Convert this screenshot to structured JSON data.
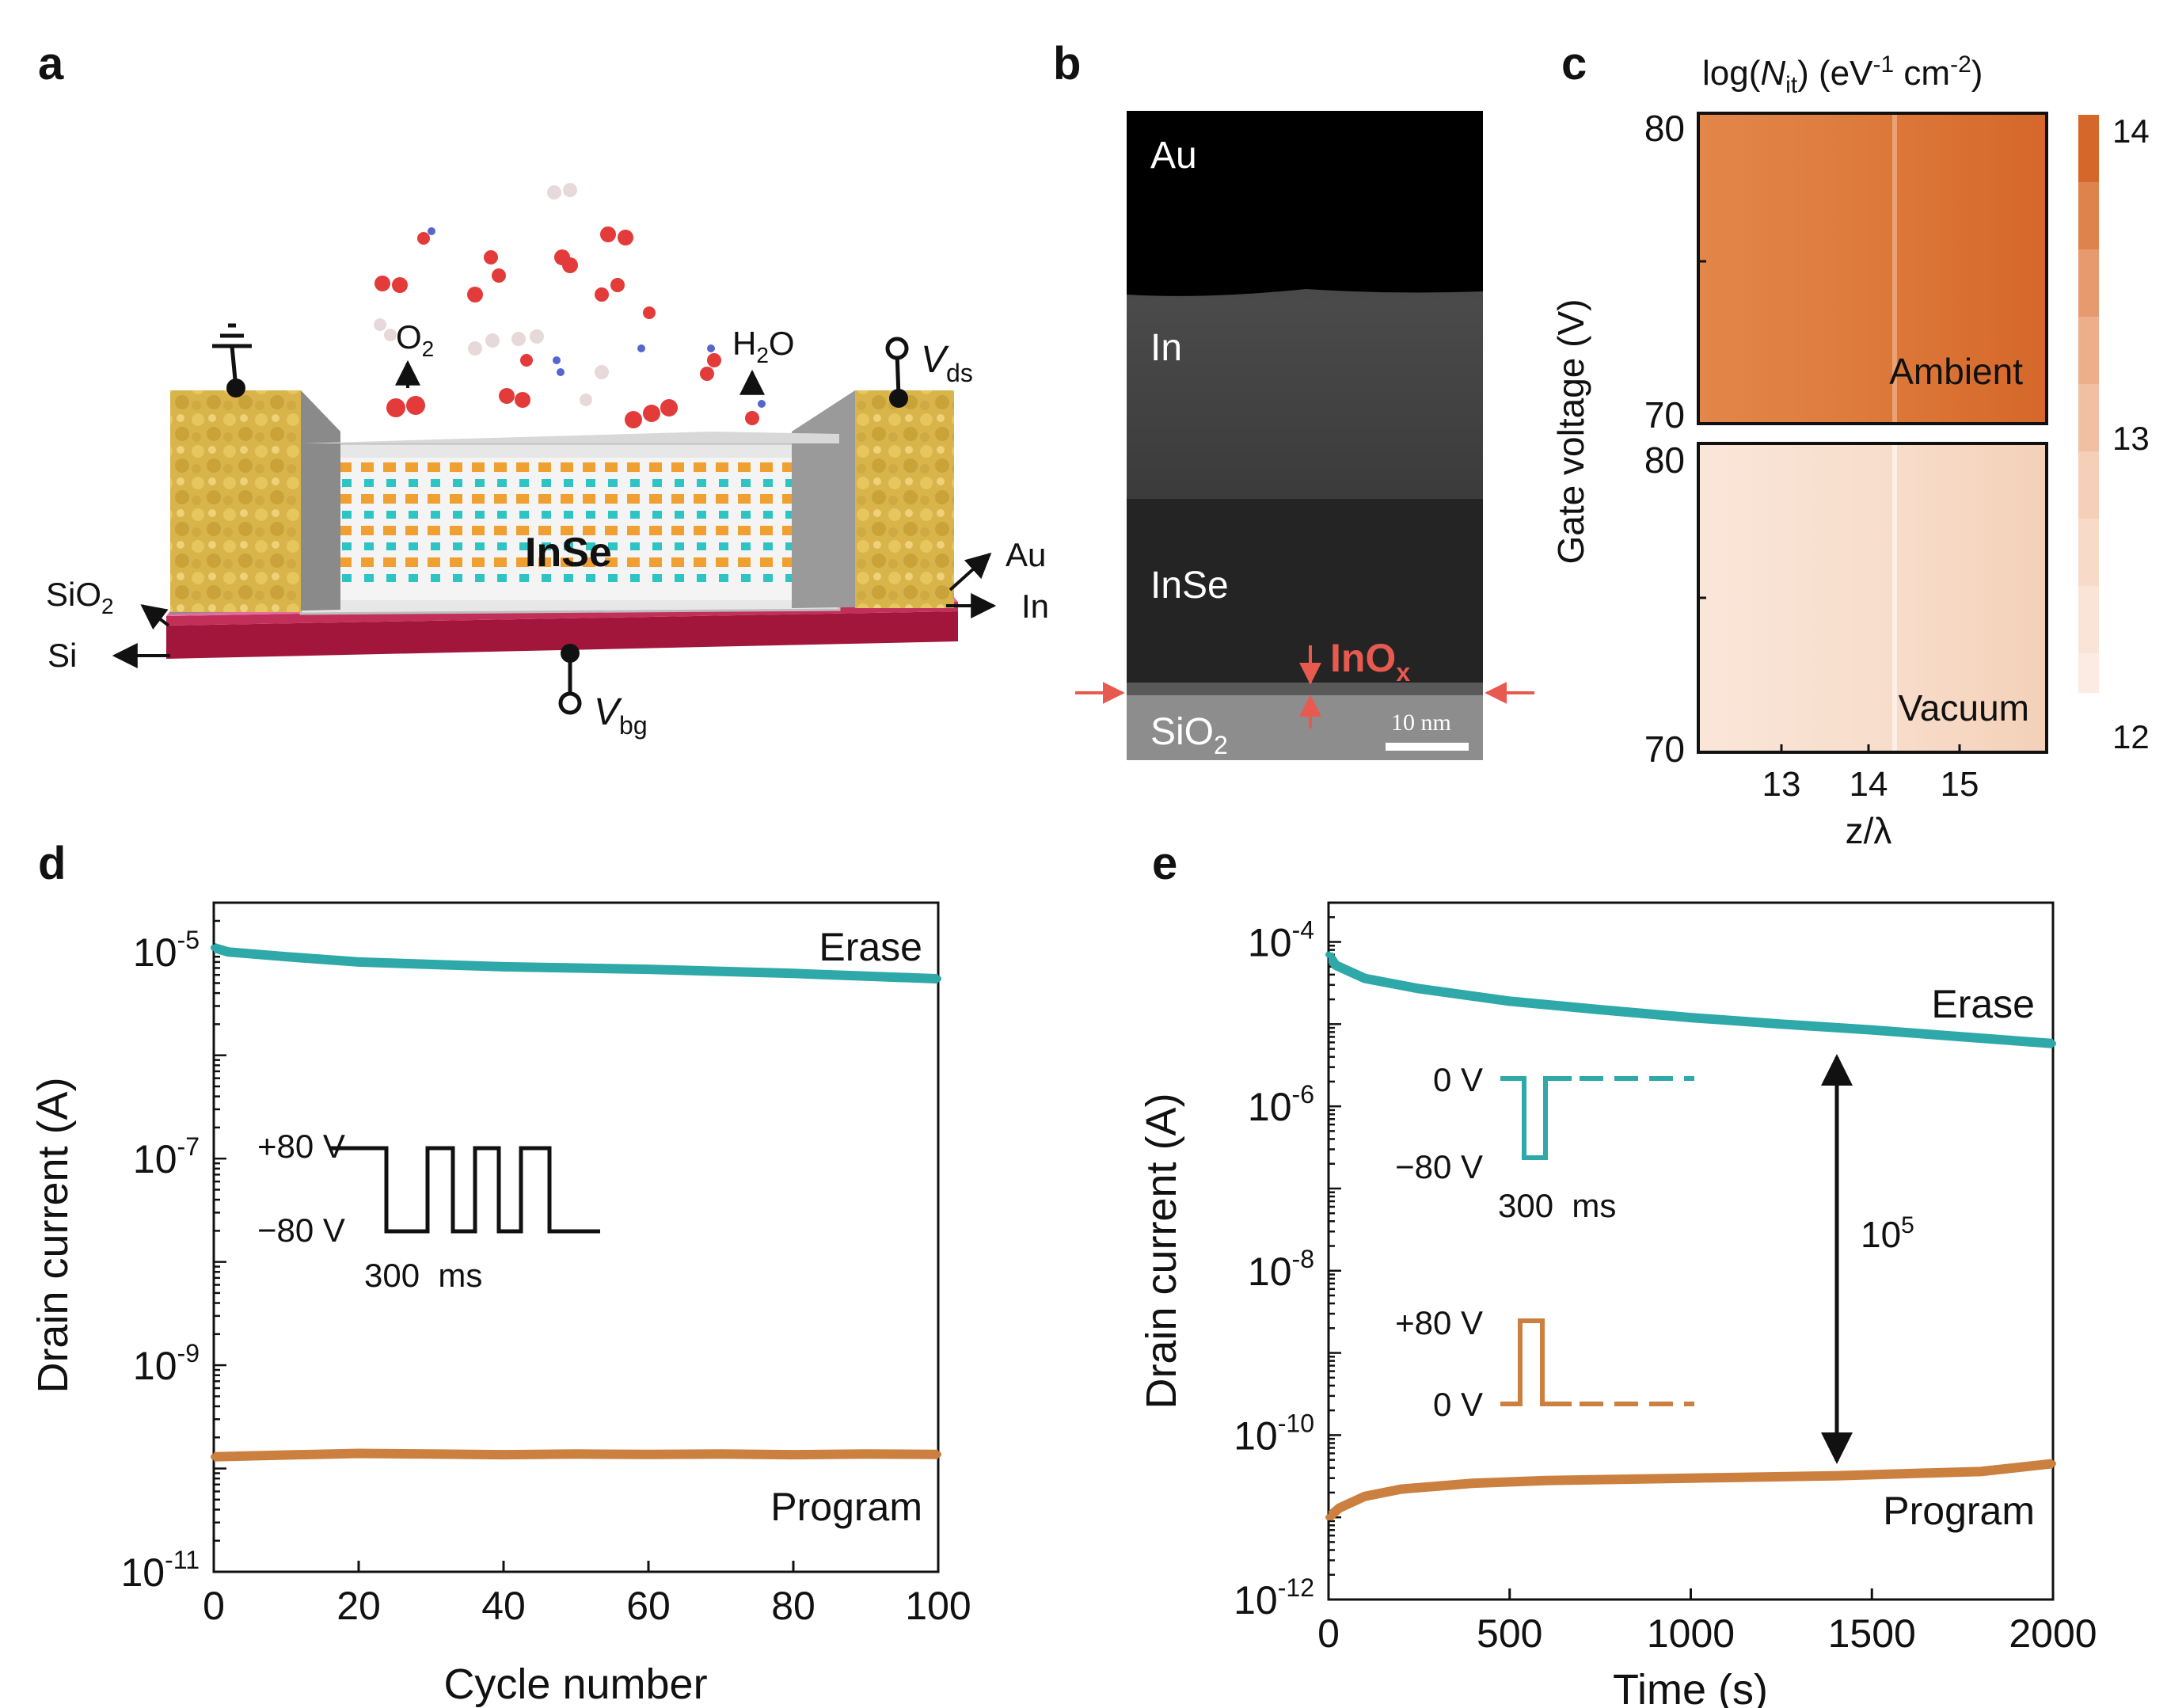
{
  "panel_labels": [
    "a",
    "b",
    "c",
    "d",
    "e"
  ],
  "colors": {
    "erase": "#2ea8a8",
    "program": "#cc8040",
    "ambient": "#d86f2c",
    "vacuum": "#f7dac8",
    "marker": "#e85a4f"
  },
  "panel_a": {
    "channel_label": "InSe",
    "molecules": [
      "O",
      "2",
      "H",
      "2",
      "O"
    ],
    "left_labels": [
      {
        "text": "SiO",
        "sub": "2"
      },
      {
        "text": "Si",
        "sub": ""
      }
    ],
    "right_labels": [
      "Au",
      "In"
    ],
    "terminals": [
      {
        "text": "V",
        "sub": "ds"
      },
      {
        "text": "V",
        "sub": "bg"
      }
    ]
  },
  "panel_b": {
    "layers": [
      "Au",
      "In",
      "InSe"
    ],
    "oxide": {
      "text": "InO",
      "sub": "x"
    },
    "substrate": {
      "text": "SiO",
      "sub": "2"
    },
    "scale_bar": "10 nm"
  },
  "panel_c": {
    "title": {
      "pre": "log(",
      "sym": "N",
      "sub": "it",
      "post": ") (eV",
      "sup1": "-1",
      "mid": " cm",
      "sup2": "-2",
      "end": ")"
    },
    "ylabel": "Gate voltage (V)",
    "xlabel": "z/λ",
    "maps": [
      {
        "name": "Ambient",
        "yticks": [
          "80",
          "70"
        ]
      },
      {
        "name": "Vacuum",
        "yticks": [
          "80",
          "70"
        ]
      }
    ],
    "xticks": [
      "13",
      "14",
      "15"
    ],
    "colorbar_ticks": [
      "14",
      "13",
      "12"
    ]
  },
  "chart_data": [
    {
      "type": "line",
      "panel": "d",
      "xlabel": "Cycle number",
      "ylabel": "Drain current (A)",
      "xlim": [
        0,
        100
      ],
      "ylim": [
        1e-11,
        3e-05
      ],
      "yscale": "log",
      "xticks": [
        "0",
        "20",
        "40",
        "60",
        "80",
        "100"
      ],
      "yticks": [
        {
          "base": "10",
          "exp": "-5"
        },
        {
          "base": "10",
          "exp": "-7"
        },
        {
          "base": "10",
          "exp": "-9"
        },
        {
          "base": "10",
          "exp": "-11"
        }
      ],
      "series": [
        {
          "name": "Erase",
          "x": [
            0,
            2,
            10,
            20,
            40,
            60,
            80,
            100
          ],
          "y": [
            1.1e-05,
            1e-05,
            9e-06,
            8e-06,
            7.2e-06,
            6.8e-06,
            6.2e-06,
            5.5e-06
          ]
        },
        {
          "name": "Program",
          "x": [
            0,
            10,
            20,
            30,
            40,
            50,
            60,
            70,
            80,
            90,
            100
          ],
          "y": [
            1.3e-10,
            1.35e-10,
            1.4e-10,
            1.38e-10,
            1.36e-10,
            1.38e-10,
            1.37e-10,
            1.38e-10,
            1.36e-10,
            1.38e-10,
            1.37e-10
          ]
        }
      ],
      "inset": {
        "high": "+80 V",
        "low": "−80 V",
        "duration": "300  ms"
      }
    },
    {
      "type": "line",
      "panel": "e",
      "xlabel": "Time (s)",
      "ylabel": "Drain current (A)",
      "xlim": [
        0,
        2000
      ],
      "ylim": [
        1e-12,
        0.0003
      ],
      "yscale": "log",
      "xticks": [
        "0",
        "500",
        "1000",
        "1500",
        "2000"
      ],
      "yticks": [
        {
          "base": "10",
          "exp": "-4"
        },
        {
          "base": "10",
          "exp": "-6"
        },
        {
          "base": "10",
          "exp": "-8"
        },
        {
          "base": "10",
          "exp": "-10"
        },
        {
          "base": "10",
          "exp": "-12"
        }
      ],
      "series": [
        {
          "name": "Erase",
          "x": [
            0,
            20,
            100,
            250,
            500,
            750,
            1000,
            1250,
            1500,
            1750,
            2000
          ],
          "y": [
            7e-05,
            5.2e-05,
            3.6e-05,
            2.7e-05,
            1.9e-05,
            1.5e-05,
            1.2e-05,
            1e-05,
            8.5e-06,
            7e-06,
            5.8e-06
          ]
        },
        {
          "name": "Program",
          "x": [
            0,
            30,
            100,
            200,
            400,
            600,
            800,
            1000,
            1200,
            1400,
            1600,
            1800,
            2000
          ],
          "y": [
            1e-11,
            1.3e-11,
            1.8e-11,
            2.2e-11,
            2.6e-11,
            2.8e-11,
            2.9e-11,
            3e-11,
            3.1e-11,
            3.2e-11,
            3.4e-11,
            3.6e-11,
            4.5e-11
          ]
        }
      ],
      "annotation": {
        "base": "10",
        "exp": "5"
      },
      "inset_erase": {
        "high": "0 V",
        "low": "−80 V",
        "duration": "300  ms"
      },
      "inset_program": {
        "high": "+80 V",
        "low": "0 V"
      }
    }
  ]
}
